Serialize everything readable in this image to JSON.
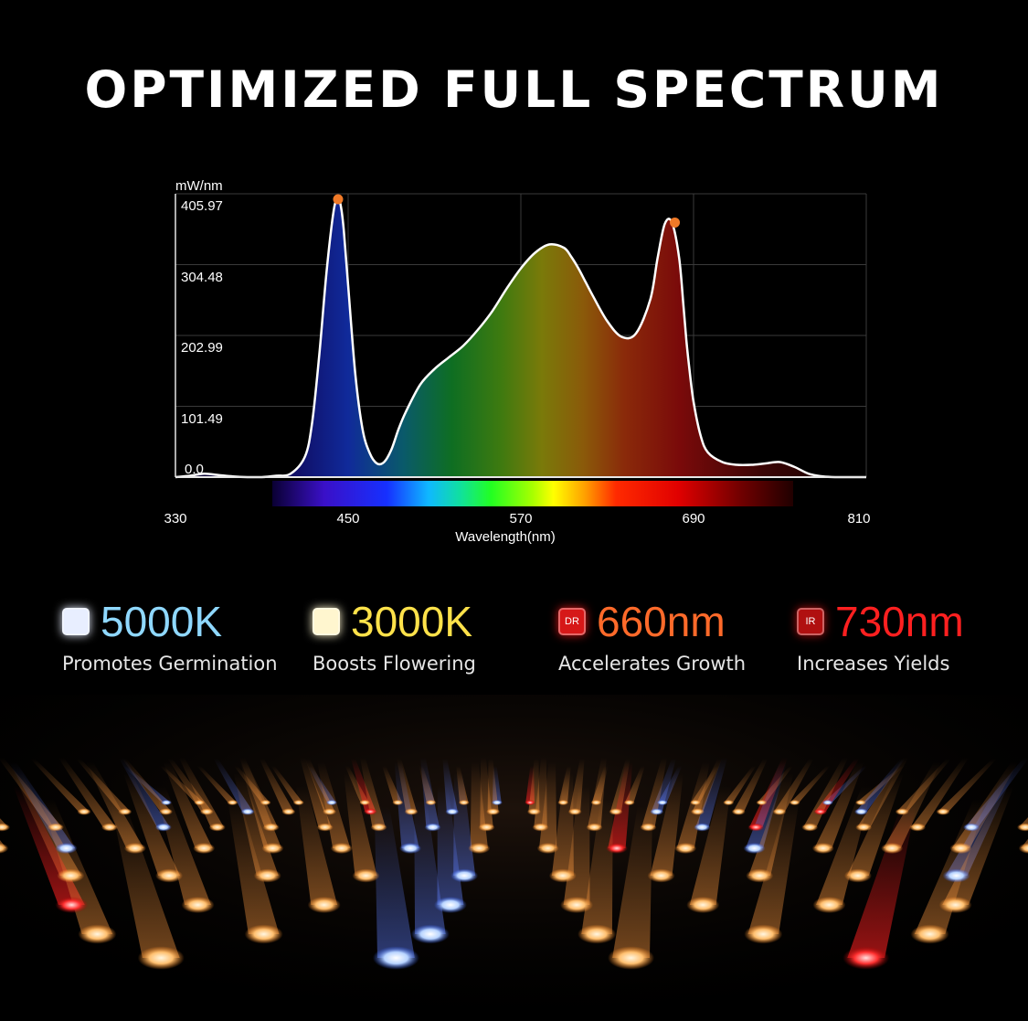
{
  "headline": "OPTIMIZED FULL SPECTRUM",
  "chart_data": {
    "type": "line",
    "ylabel": "mW/nm",
    "xlabel": "Wavelength(nm)",
    "x_ticks": [
      330,
      450,
      570,
      690,
      810
    ],
    "y_ticks": [
      "0.0",
      "101.49",
      "202.99",
      "304.48",
      "405.97"
    ],
    "xlim": [
      330,
      810
    ],
    "ylim": [
      0,
      405.97
    ],
    "grid": true,
    "series": [
      {
        "x": [
          330,
          340,
          350,
          360,
          370,
          380,
          390,
          400,
          410,
          420,
          425,
          430,
          435,
          440,
          443,
          445,
          447,
          450,
          455,
          460,
          465,
          470,
          475,
          480,
          485,
          490,
          500,
          510,
          520,
          530,
          540,
          550,
          560,
          570,
          580,
          590,
          600,
          605,
          610,
          615,
          620,
          630,
          640,
          650,
          660,
          665,
          670,
          675,
          680,
          683,
          685,
          687,
          690,
          695,
          700,
          710,
          720,
          730,
          740,
          750,
          760,
          770,
          780,
          790,
          800,
          810
        ],
        "values": [
          0,
          2,
          5,
          3,
          1,
          0,
          0,
          2,
          5,
          30,
          80,
          180,
          300,
          390,
          405.97,
          395,
          360,
          280,
          150,
          70,
          35,
          20,
          22,
          40,
          70,
          95,
          135,
          158,
          175,
          192,
          215,
          242,
          275,
          305,
          328,
          340,
          335,
          322,
          305,
          285,
          265,
          228,
          205,
          210,
          260,
          320,
          370,
          372,
          320,
          250,
          200,
          160,
          110,
          60,
          36,
          22,
          18,
          18,
          20,
          22,
          15,
          5,
          1,
          0,
          0,
          0
        ]
      }
    ],
    "peaks": [
      {
        "x": 443,
        "y": 405.97
      },
      {
        "x": 677,
        "y": 372
      }
    ],
    "colors": {
      "curve": "#ffffff",
      "peak_marker": "#f07a28",
      "grid": "#3a3a3a"
    }
  },
  "features": [
    {
      "value": "5000K",
      "caption": "Promotes Germination",
      "badge_text": "",
      "icon": "cool-white-chip-icon",
      "color": "#8fd8ff",
      "badge_color": "#e8eeff"
    },
    {
      "value": "3000K",
      "caption": "Boosts Flowering",
      "badge_text": "",
      "icon": "warm-white-chip-icon",
      "color": "#ffe24a",
      "badge_color": "#fff6cf"
    },
    {
      "value": "660nm",
      "caption": "Accelerates Growth",
      "badge_text": "DR",
      "icon": "deep-red-chip-icon",
      "color": "#ff6a2a",
      "badge_color": "#d61818"
    },
    {
      "value": "730nm",
      "caption": "Increases Yields",
      "badge_text": "IR",
      "icon": "infrared-chip-icon",
      "color": "#ff2020",
      "badge_color": "#b01010"
    }
  ]
}
